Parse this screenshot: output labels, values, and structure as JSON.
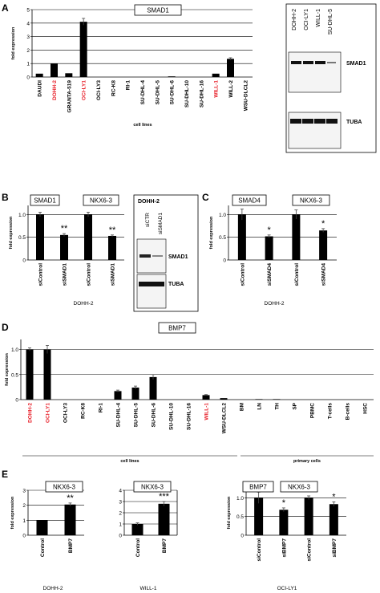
{
  "chart_data": [
    {
      "panel": "A",
      "type": "bar",
      "title": "SMAD1",
      "ylabel": "fold expression",
      "xlabel": "cell lines",
      "ylim": [
        0,
        5
      ],
      "yticks": [
        "0",
        "1",
        "2",
        "3",
        "4",
        "5"
      ],
      "categories": [
        "DAUDI",
        "DOHH-2",
        "GRANTA-519",
        "OCI-LY1",
        "OCI-LY3",
        "RC-K8",
        "RI-1",
        "SU-DHL-4",
        "SU-DHL-5",
        "SU-DHL-6",
        "SU-DHL-10",
        "SU-DHL-16",
        "WILL-1",
        "WILL-2",
        "WSU-DLCL2"
      ],
      "highlight": [
        "DOHH-2",
        "OCI-LY1",
        "WILL-1"
      ],
      "values": [
        0.25,
        1.0,
        0.28,
        4.1,
        0,
        0,
        0,
        0,
        0,
        0.05,
        0,
        0,
        0.25,
        1.35,
        0
      ],
      "errors": [
        0,
        0,
        0,
        0.25,
        0,
        0,
        0,
        0,
        0,
        0,
        0,
        0,
        0,
        0.08,
        0
      ],
      "blot": {
        "lanes": [
          "DOHH-2",
          "OCI-LY1",
          "WILL-1",
          "SU-DHL-5"
        ],
        "bands": [
          "SMAD1",
          "TUBA"
        ]
      }
    },
    {
      "panel": "B",
      "type": "bar",
      "group_labels": [
        "SMAD1",
        "NKX6-3"
      ],
      "ylabel": "fold expression",
      "xlabel": "DOHH-2",
      "ylim": [
        0,
        1.2
      ],
      "yticks": [
        "0",
        "0.5",
        "1.0"
      ],
      "categories": [
        "siControl",
        "siSMAD1",
        "siControl",
        "siSMAD1"
      ],
      "values": [
        1.0,
        0.55,
        1.0,
        0.53
      ],
      "errors": [
        0.05,
        0.03,
        0.05,
        0.02
      ],
      "significance": [
        "",
        "**",
        "",
        "**"
      ],
      "blot": {
        "title": "DOHH-2",
        "lanes": [
          "siCTR",
          "siSMAD1"
        ],
        "bands": [
          "SMAD1",
          "TUBA"
        ]
      }
    },
    {
      "panel": "C",
      "type": "bar",
      "group_labels": [
        "SMAD4",
        "NKX6-3"
      ],
      "ylabel": "fold expression",
      "xlabel": "DOHH-2",
      "ylim": [
        0,
        1.2
      ],
      "yticks": [
        "0",
        "0.5",
        "1.0"
      ],
      "categories": [
        "siControl",
        "siSMAD4",
        "siControl",
        "siSMAD4"
      ],
      "values": [
        1.0,
        0.52,
        1.0,
        0.65
      ],
      "errors": [
        0.12,
        0.03,
        0.1,
        0.04
      ],
      "significance": [
        "",
        "*",
        "",
        "*"
      ]
    },
    {
      "panel": "D",
      "type": "bar",
      "title": "BMP7",
      "ylabel": "fold expression",
      "xlabel_groups": [
        "cell lines",
        "primary cells"
      ],
      "ylim": [
        0,
        1.2
      ],
      "yticks": [
        "0",
        "0.5",
        "1.0"
      ],
      "categories": [
        "DOHH-2",
        "OCI-LY1",
        "OCI-LY3",
        "RC-K8",
        "RI-1",
        "SU-DHL-4",
        "SU-DHL-5",
        "SU-DHL-6",
        "SU-DHL-10",
        "SU-DHL-16",
        "WILL-1",
        "WSU-DLCL2",
        "BM",
        "LN",
        "TH",
        "SP",
        "PBMC",
        "T-cells",
        "B-cells",
        "HSC"
      ],
      "highlight": [
        "DOHH-2",
        "OCI-LY1",
        "WILL-1"
      ],
      "values": [
        1.0,
        1.0,
        0,
        0,
        0,
        0.17,
        0.24,
        0.45,
        0,
        0,
        0.09,
        0.03,
        0,
        0.01,
        0.01,
        0,
        0,
        0,
        0,
        0
      ],
      "errors": [
        0.03,
        0.08,
        0,
        0,
        0,
        0.02,
        0.03,
        0.05,
        0,
        0,
        0.01,
        0,
        0,
        0,
        0,
        0,
        0,
        0,
        0,
        0
      ]
    },
    {
      "panel": "E",
      "type": "bar",
      "title": "NKX6-3",
      "ylabel": "fold expression",
      "xlabel": "DOHH-2",
      "ylim": [
        0,
        3
      ],
      "yticks": [
        "0",
        "1",
        "2",
        "3"
      ],
      "categories": [
        "Control",
        "BMP7"
      ],
      "values": [
        1.0,
        2.05
      ],
      "errors": [
        0,
        0.1
      ],
      "significance": [
        "",
        "**"
      ]
    },
    {
      "panel": "E",
      "type": "bar",
      "title": "NKX6-3",
      "xlabel": "WILL-1",
      "ylim": [
        0,
        4
      ],
      "yticks": [
        "0",
        "1",
        "2",
        "3",
        "4"
      ],
      "categories": [
        "Control",
        "BMP7"
      ],
      "values": [
        1.0,
        2.8
      ],
      "errors": [
        0.1,
        0.2
      ],
      "significance": [
        "",
        "***"
      ]
    },
    {
      "panel": "E",
      "type": "bar",
      "group_labels": [
        "BMP7",
        "NKX6-3"
      ],
      "ylabel": "fold expression",
      "xlabel": "OCI-LY1",
      "ylim": [
        0,
        1.2
      ],
      "yticks": [
        "0",
        "0.5",
        "1.0"
      ],
      "categories": [
        "siControl",
        "siBMP7",
        "siControl",
        "siBMP7"
      ],
      "values": [
        1.0,
        0.68,
        1.0,
        0.83
      ],
      "errors": [
        0.15,
        0.05,
        0.05,
        0.06
      ],
      "significance": [
        "",
        "*",
        "",
        "*"
      ]
    }
  ]
}
